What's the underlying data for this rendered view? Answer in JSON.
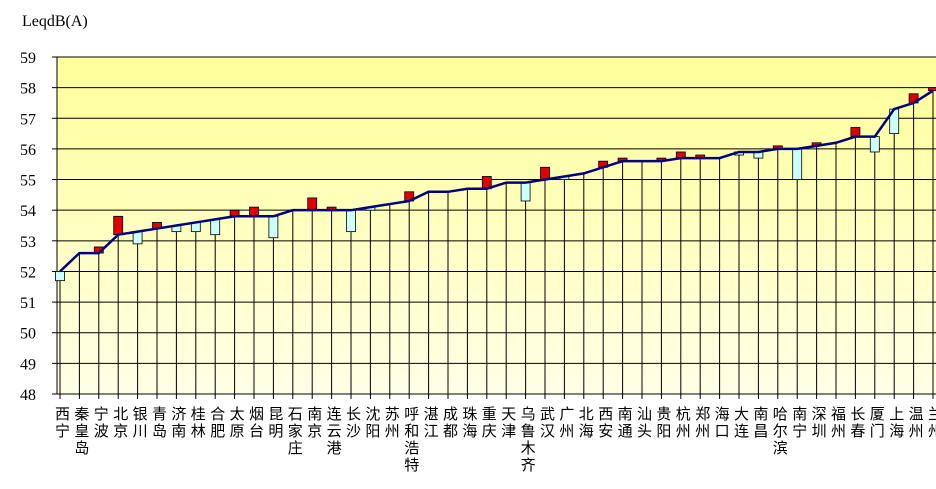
{
  "chart_data": {
    "type": "line",
    "y_label": "LeqdB(A)",
    "categories": [
      "西宁",
      "秦皇岛",
      "宁波",
      "北京",
      "银川",
      "青岛",
      "济南",
      "桂林",
      "合肥",
      "太原",
      "烟台",
      "昆明",
      "石家庄",
      "南京",
      "连云港",
      "长沙",
      "沈阳",
      "苏州",
      "呼和浩特",
      "湛江",
      "成都",
      "珠海",
      "重庆",
      "天津",
      "乌鲁木齐",
      "武汉",
      "广州",
      "北海",
      "西安",
      "南通",
      "汕头",
      "贵阳",
      "杭州",
      "郑州",
      "海口",
      "大连",
      "南昌",
      "哈尔滨",
      "南宁",
      "深圳",
      "福州",
      "长春",
      "厦门",
      "上海",
      "温州",
      "兰州"
    ],
    "series": [
      {
        "color": "#000080",
        "values": [
          52.0,
          52.6,
          52.6,
          53.2,
          53.3,
          53.4,
          53.5,
          53.6,
          53.7,
          53.8,
          53.8,
          53.8,
          54.0,
          54.0,
          54.0,
          54.0,
          54.1,
          54.2,
          54.3,
          54.6,
          54.6,
          54.7,
          54.7,
          54.9,
          54.9,
          55.0,
          55.1,
          55.2,
          55.4,
          55.6,
          55.6,
          55.6,
          55.7,
          55.7,
          55.7,
          55.9,
          55.9,
          56.0,
          56.0,
          56.1,
          56.2,
          56.4,
          56.4,
          57.3,
          57.5,
          57.9
        ]
      },
      {
        "values": [
          51.7,
          52.6,
          52.8,
          53.8,
          52.9,
          53.6,
          53.3,
          53.3,
          53.2,
          54.0,
          54.1,
          53.1,
          54.0,
          54.4,
          54.1,
          53.3,
          54.0,
          54.2,
          54.6,
          54.6,
          54.6,
          54.7,
          55.1,
          54.9,
          54.3,
          55.4,
          55.0,
          55.2,
          55.6,
          55.7,
          55.6,
          55.7,
          55.9,
          55.8,
          55.7,
          55.8,
          55.7,
          56.1,
          55.0,
          56.2,
          56.2,
          56.7,
          55.9,
          56.5,
          57.8,
          58.0
        ]
      }
    ],
    "up_color": "#e00000",
    "down_color": "#ccffff",
    "ylim": [
      48,
      59
    ],
    "yticks": [
      48,
      49,
      50,
      51,
      52,
      53,
      54,
      55,
      56,
      57,
      58,
      59
    ],
    "grid": true
  }
}
